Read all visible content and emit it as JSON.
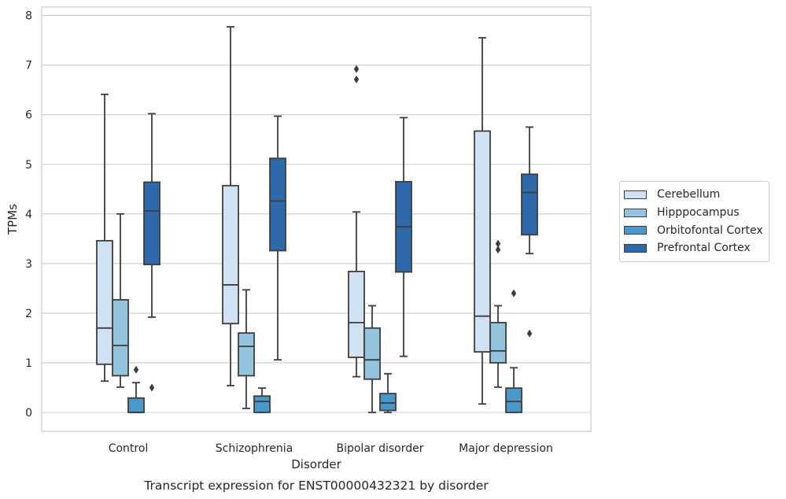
{
  "chart_data": {
    "type": "box",
    "title": "Transcript expression for ENST00000432321 by disorder",
    "xlabel": "Disorder",
    "ylabel": "TPMs",
    "ylim": [
      -0.38,
      8.17
    ],
    "yticks": [
      0,
      1,
      2,
      3,
      4,
      5,
      6,
      7,
      8
    ],
    "grid": true,
    "legend_position": "right",
    "categories": [
      "Control",
      "Schizophrenia",
      "Bipolar disorder",
      "Major depression"
    ],
    "series": [
      {
        "name": "Cerebellum",
        "color": "#d0e1f2",
        "boxes": [
          {
            "whislo": 0.63,
            "q1": 0.97,
            "med": 1.7,
            "q3": 3.46,
            "whishi": 6.41,
            "fliers": []
          },
          {
            "whislo": 0.54,
            "q1": 1.79,
            "med": 2.57,
            "q3": 4.57,
            "whishi": 7.77,
            "fliers": []
          },
          {
            "whislo": 0.72,
            "q1": 1.11,
            "med": 1.81,
            "q3": 2.84,
            "whishi": 4.04,
            "fliers": [
              6.92,
              6.71
            ]
          },
          {
            "whislo": 0.17,
            "q1": 1.22,
            "med": 1.94,
            "q3": 5.67,
            "whishi": 7.55,
            "fliers": []
          }
        ]
      },
      {
        "name": "Hipppocampus",
        "color": "#94c4df",
        "boxes": [
          {
            "whislo": 0.51,
            "q1": 0.74,
            "med": 1.35,
            "q3": 2.27,
            "whishi": 4.0,
            "fliers": []
          },
          {
            "whislo": 0.08,
            "q1": 0.74,
            "med": 1.33,
            "q3": 1.6,
            "whishi": 2.47,
            "fliers": []
          },
          {
            "whislo": 0.0,
            "q1": 0.67,
            "med": 1.06,
            "q3": 1.7,
            "whishi": 2.15,
            "fliers": []
          },
          {
            "whislo": 0.51,
            "q1": 1.0,
            "med": 1.24,
            "q3": 1.81,
            "whishi": 2.15,
            "fliers": [
              3.4,
              3.28
            ]
          }
        ]
      },
      {
        "name": "Orbitofontal Cortex",
        "color": "#4a98c9",
        "boxes": [
          {
            "whislo": 0.0,
            "q1": 0.0,
            "med": 0.0,
            "q3": 0.29,
            "whishi": 0.6,
            "fliers": [
              0.86
            ]
          },
          {
            "whislo": 0.0,
            "q1": 0.0,
            "med": 0.22,
            "q3": 0.33,
            "whishi": 0.49,
            "fliers": []
          },
          {
            "whislo": 0.0,
            "q1": 0.04,
            "med": 0.19,
            "q3": 0.38,
            "whishi": 0.78,
            "fliers": []
          },
          {
            "whislo": 0.0,
            "q1": 0.0,
            "med": 0.22,
            "q3": 0.49,
            "whishi": 0.9,
            "fliers": [
              2.4
            ]
          }
        ]
      },
      {
        "name": "Prefrontal Cortex",
        "color": "#2e6aaa",
        "boxes": [
          {
            "whislo": 1.92,
            "q1": 2.98,
            "med": 4.06,
            "q3": 4.64,
            "whishi": 6.02,
            "fliers": [
              0.5
            ]
          },
          {
            "whislo": 1.06,
            "q1": 3.26,
            "med": 4.26,
            "q3": 5.12,
            "whishi": 5.97,
            "fliers": []
          },
          {
            "whislo": 1.13,
            "q1": 2.83,
            "med": 3.74,
            "q3": 4.65,
            "whishi": 5.94,
            "fliers": []
          },
          {
            "whislo": 3.2,
            "q1": 3.58,
            "med": 4.43,
            "q3": 4.8,
            "whishi": 5.75,
            "fliers": [
              1.59
            ]
          }
        ]
      }
    ]
  }
}
